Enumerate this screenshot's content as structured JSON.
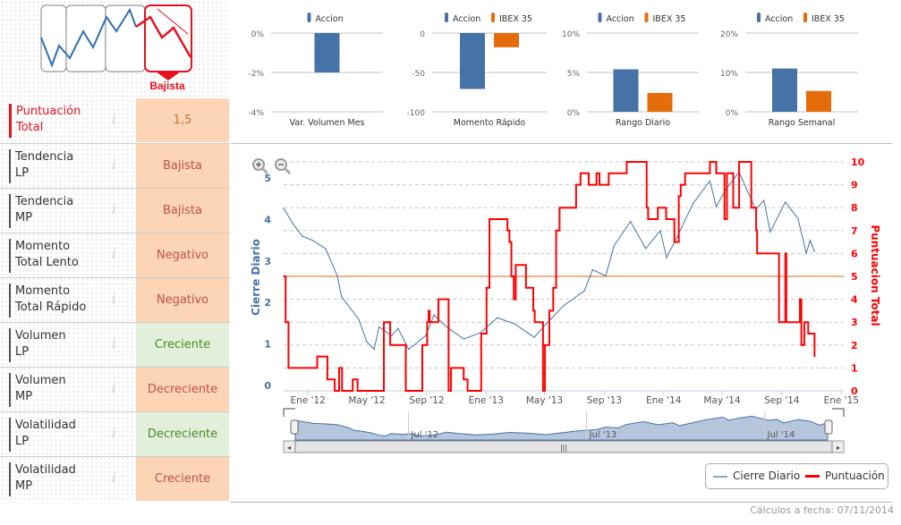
{
  "summary": {
    "trend_label": "Bajista",
    "rows": [
      {
        "label_line1": "Puntuación",
        "label_line2": "Total",
        "value": "1,5",
        "tone": "orange"
      },
      {
        "label_line1": "Tendencia",
        "label_line2": "LP",
        "value": "Bajista",
        "tone": "orange"
      },
      {
        "label_line1": "Tendencia",
        "label_line2": "MP",
        "value": "Bajista",
        "tone": "orange"
      },
      {
        "label_line1": "Momento",
        "label_line2": "Total Lento",
        "value": "Negativo",
        "tone": "orange"
      },
      {
        "label_line1": "Momento",
        "label_line2": "Total Rápido",
        "value": "Negativo",
        "tone": "orange"
      },
      {
        "label_line1": "Volumen",
        "label_line2": "LP",
        "value": "Creciente",
        "tone": "green"
      },
      {
        "label_line1": "Volumen",
        "label_line2": "MP",
        "value": "Decreciente",
        "tone": "orange"
      },
      {
        "label_line1": "Volatilidad",
        "label_line2": "LP",
        "value": "Decreciente",
        "tone": "green"
      },
      {
        "label_line1": "Volatilidad",
        "label_line2": "MP",
        "value": "Creciente",
        "tone": "orange"
      }
    ],
    "info_icon": "i"
  },
  "colors": {
    "accion": "#4572a7",
    "ibex": "#e46c0a",
    "cierre": "#4572a7",
    "puntuacion": "#ff0000",
    "threshold": "#e8b48a"
  },
  "chart_data": [
    {
      "type": "bar",
      "categories": [
        "Var. Volumen Mes"
      ],
      "series": [
        {
          "name": "Accion",
          "values": [
            -2
          ]
        }
      ],
      "ylim": [
        -4,
        0
      ],
      "ticks": [
        "0%",
        "-2%",
        "-4%"
      ],
      "tick_values": [
        0,
        -2,
        -4
      ]
    },
    {
      "type": "bar",
      "categories": [
        "Momento Rápido"
      ],
      "series": [
        {
          "name": "Accion",
          "values": [
            -71
          ]
        },
        {
          "name": "IBEX 35",
          "values": [
            -18
          ]
        }
      ],
      "ylim": [
        -100,
        0
      ],
      "ticks": [
        "0",
        "-50",
        "-100"
      ],
      "tick_values": [
        0,
        -50,
        -100
      ]
    },
    {
      "type": "bar",
      "categories": [
        "Rango Diario"
      ],
      "series": [
        {
          "name": "Accion",
          "values": [
            5.4
          ]
        },
        {
          "name": "IBEX 35",
          "values": [
            2.4
          ]
        }
      ],
      "ylim": [
        0,
        10
      ],
      "ticks": [
        "10%",
        "5%",
        "0%"
      ],
      "tick_values": [
        10,
        5,
        0
      ]
    },
    {
      "type": "bar",
      "categories": [
        "Rango Semanal"
      ],
      "series": [
        {
          "name": "Accion",
          "values": [
            11.0
          ]
        },
        {
          "name": "IBEX 35",
          "values": [
            5.3
          ]
        }
      ],
      "ylim": [
        0,
        20
      ],
      "ticks": [
        "20%",
        "10%",
        "0%"
      ],
      "tick_values": [
        20,
        10,
        0
      ]
    },
    {
      "type": "line",
      "xlim": [
        "2011-11-12",
        "2015-01-06"
      ],
      "x_ticks": [
        {
          "date": "2012-01-01",
          "label": "Ene '12"
        },
        {
          "date": "2012-05-01",
          "label": "May '12"
        },
        {
          "date": "2012-09-01",
          "label": "Sep '12"
        },
        {
          "date": "2013-01-01",
          "label": "Ene '13"
        },
        {
          "date": "2013-05-01",
          "label": "May '13"
        },
        {
          "date": "2013-09-01",
          "label": "Sep '13"
        },
        {
          "date": "2014-01-01",
          "label": "Ene '14"
        },
        {
          "date": "2014-05-01",
          "label": "May '14"
        },
        {
          "date": "2014-09-01",
          "label": "Sep '14"
        },
        {
          "date": "2015-01-01",
          "label": "Ene '15"
        }
      ],
      "y_left": {
        "label": "Cierre Diario",
        "ticks": [
          0,
          1,
          2,
          3,
          4,
          5
        ]
      },
      "y_right": {
        "label": "Puntuacion  Total",
        "ticks": [
          0,
          1,
          2,
          3,
          4,
          5,
          6,
          7,
          8,
          9,
          10
        ],
        "ylim": [
          0,
          10
        ]
      },
      "threshold": 5,
      "series": [
        {
          "name": "Cierre Diario",
          "axis": "left",
          "points": [
            [
              "2011-11-12",
              4.27
            ],
            [
              "2011-12-01",
              3.9
            ],
            [
              "2011-12-20",
              3.6
            ],
            [
              "2012-01-10",
              3.5
            ],
            [
              "2012-02-06",
              3.3
            ],
            [
              "2012-03-01",
              2.65
            ],
            [
              "2012-03-10",
              2.14
            ],
            [
              "2012-04-14",
              1.6
            ],
            [
              "2012-05-01",
              1.05
            ],
            [
              "2012-05-16",
              0.87
            ],
            [
              "2012-05-26",
              1.41
            ],
            [
              "2012-06-21",
              1.2
            ],
            [
              "2012-07-04",
              1.38
            ],
            [
              "2012-07-26",
              0.87
            ],
            [
              "2012-08-30",
              1.2
            ],
            [
              "2012-09-16",
              1.7
            ],
            [
              "2012-10-12",
              1.41
            ],
            [
              "2012-11-16",
              1.12
            ],
            [
              "2012-12-20",
              1.27
            ],
            [
              "2013-01-24",
              1.63
            ],
            [
              "2013-02-28",
              1.49
            ],
            [
              "2013-04-10",
              1.16
            ],
            [
              "2013-05-05",
              1.49
            ],
            [
              "2013-06-09",
              1.92
            ],
            [
              "2013-07-22",
              2.28
            ],
            [
              "2013-08-08",
              2.79
            ],
            [
              "2013-09-04",
              2.64
            ],
            [
              "2013-09-21",
              3.37
            ],
            [
              "2013-10-25",
              3.95
            ],
            [
              "2013-11-25",
              3.3
            ],
            [
              "2013-12-25",
              3.73
            ],
            [
              "2014-01-07",
              3.08
            ],
            [
              "2014-01-29",
              3.59
            ],
            [
              "2014-03-02",
              4.38
            ],
            [
              "2014-04-06",
              4.93
            ],
            [
              "2014-04-19",
              4.31
            ],
            [
              "2014-05-10",
              4.75
            ],
            [
              "2014-06-05",
              5.14
            ],
            [
              "2014-07-09",
              4.24
            ],
            [
              "2014-07-26",
              4.46
            ],
            [
              "2014-08-08",
              3.7
            ],
            [
              "2014-09-08",
              4.42
            ],
            [
              "2014-10-04",
              4.02
            ],
            [
              "2014-10-21",
              3.19
            ],
            [
              "2014-10-29",
              3.5
            ],
            [
              "2014-11-07",
              3.22
            ]
          ]
        },
        {
          "name": "Puntuación",
          "axis": "right",
          "step": true,
          "points": [
            [
              "2011-11-12",
              5
            ],
            [
              "2011-11-16",
              3
            ],
            [
              "2011-11-22",
              1
            ],
            [
              "2012-01-20",
              1.5
            ],
            [
              "2012-02-10",
              0.5
            ],
            [
              "2012-02-25",
              0
            ],
            [
              "2012-03-05",
              1
            ],
            [
              "2012-03-11",
              0
            ],
            [
              "2012-04-02",
              0.5
            ],
            [
              "2012-04-12",
              0
            ],
            [
              "2012-06-05",
              3
            ],
            [
              "2012-06-18",
              2
            ],
            [
              "2012-07-20",
              0
            ],
            [
              "2012-08-23",
              2
            ],
            [
              "2012-09-02",
              3
            ],
            [
              "2012-09-05",
              3.5
            ],
            [
              "2012-09-07",
              3
            ],
            [
              "2012-09-25",
              4
            ],
            [
              "2012-10-16",
              0
            ],
            [
              "2012-10-21",
              1
            ],
            [
              "2012-11-16",
              0.5
            ],
            [
              "2012-11-24",
              0
            ],
            [
              "2012-12-22",
              2.5
            ],
            [
              "2013-01-02",
              4.5
            ],
            [
              "2013-01-08",
              7.5
            ],
            [
              "2013-02-14",
              7
            ],
            [
              "2013-02-18",
              6.5
            ],
            [
              "2013-02-22",
              5
            ],
            [
              "2013-02-27",
              4
            ],
            [
              "2013-03-03",
              5.5
            ],
            [
              "2013-03-24",
              4.5
            ],
            [
              "2013-04-08",
              3.5
            ],
            [
              "2013-04-11",
              3
            ],
            [
              "2013-04-28",
              0
            ],
            [
              "2013-05-02",
              2
            ],
            [
              "2013-05-11",
              3.5
            ],
            [
              "2013-05-19",
              4.5
            ],
            [
              "2013-05-25",
              7
            ],
            [
              "2013-06-01",
              8
            ],
            [
              "2013-07-05",
              9
            ],
            [
              "2013-07-14",
              9.5
            ],
            [
              "2013-07-31",
              9
            ],
            [
              "2013-08-16",
              9.5
            ],
            [
              "2013-08-22",
              9
            ],
            [
              "2013-09-10",
              9.5
            ],
            [
              "2013-10-17",
              10
            ],
            [
              "2013-11-27",
              8
            ],
            [
              "2013-11-30",
              7.5
            ],
            [
              "2013-12-20",
              8
            ],
            [
              "2014-01-06",
              7.5
            ],
            [
              "2014-01-23",
              6.5
            ],
            [
              "2014-02-01",
              8.5
            ],
            [
              "2014-02-05",
              9
            ],
            [
              "2014-02-14",
              9.5
            ],
            [
              "2014-04-06",
              10
            ],
            [
              "2014-04-19",
              9.5
            ],
            [
              "2014-05-06",
              7.5
            ],
            [
              "2014-05-11",
              9.5
            ],
            [
              "2014-05-24",
              8
            ],
            [
              "2014-06-05",
              10
            ],
            [
              "2014-06-30",
              8
            ],
            [
              "2014-07-10",
              7
            ],
            [
              "2014-07-12",
              6
            ],
            [
              "2014-08-26",
              3
            ],
            [
              "2014-09-08",
              6
            ],
            [
              "2014-09-10",
              3
            ],
            [
              "2014-10-08",
              4
            ],
            [
              "2014-10-11",
              2
            ],
            [
              "2014-10-17",
              3
            ],
            [
              "2014-10-25",
              2.5
            ],
            [
              "2014-11-07",
              1.5
            ]
          ]
        }
      ],
      "navigator": {
        "labels": [
          {
            "date": "2012-07-01",
            "label": "Jul '12"
          },
          {
            "date": "2013-07-01",
            "label": "Jul '13"
          },
          {
            "date": "2014-07-01",
            "label": "Jul '14"
          }
        ]
      },
      "legend": {
        "items": [
          "Cierre Diario",
          "Puntuación"
        ],
        "placement": "bottom-right"
      }
    }
  ],
  "footer": "Cálculos a fecha: 07/11/2014"
}
